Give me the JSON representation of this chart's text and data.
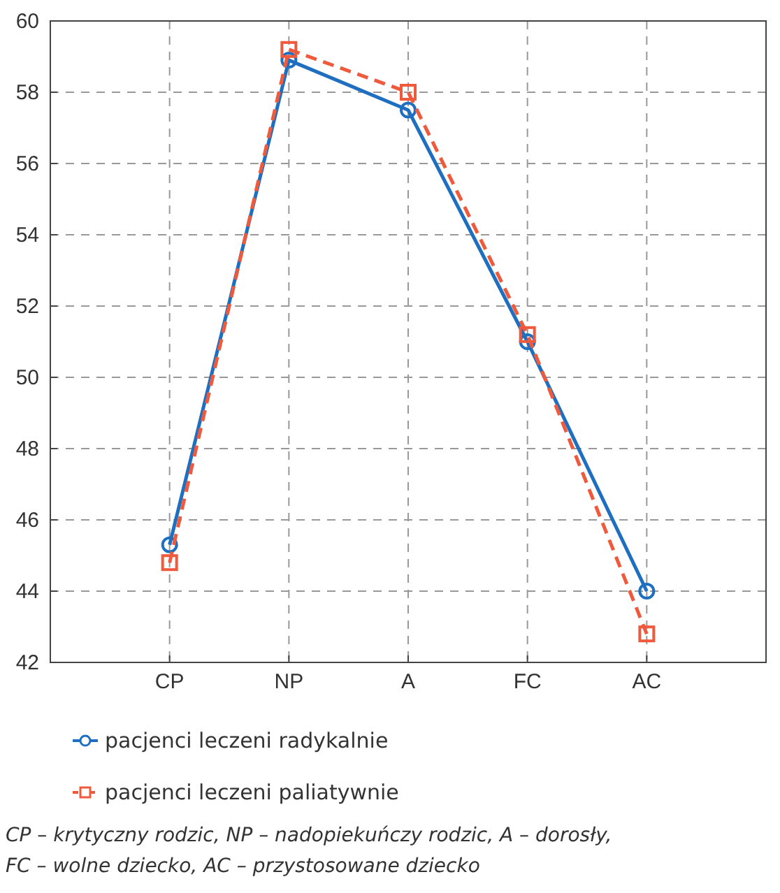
{
  "chart_data": {
    "type": "line",
    "categories": [
      "CP",
      "NP",
      "A",
      "FC",
      "AC"
    ],
    "series": [
      {
        "name": "pacjenci leczeni radykalnie",
        "color": "#1f6fc0",
        "values": [
          45.3,
          58.9,
          57.5,
          51.0,
          44.0
        ],
        "marker": "circle",
        "line_style": "solid"
      },
      {
        "name": "pacjenci leczeni paliatywnie",
        "color": "#f05a3c",
        "values": [
          44.8,
          59.2,
          58.0,
          51.2,
          42.8
        ],
        "marker": "square",
        "line_style": "dashed"
      }
    ],
    "ylim": [
      42,
      60
    ],
    "yticks": [
      42,
      44,
      46,
      48,
      50,
      52,
      54,
      56,
      58,
      60
    ],
    "grid": true,
    "legend": "bottom",
    "annotations": [
      "CP – krytyczny rodzic, NP – nadopiekuńczy rodzic, A – dorosły,",
      "FC – wolne dziecko, AC – przystosowane dziecko"
    ]
  }
}
